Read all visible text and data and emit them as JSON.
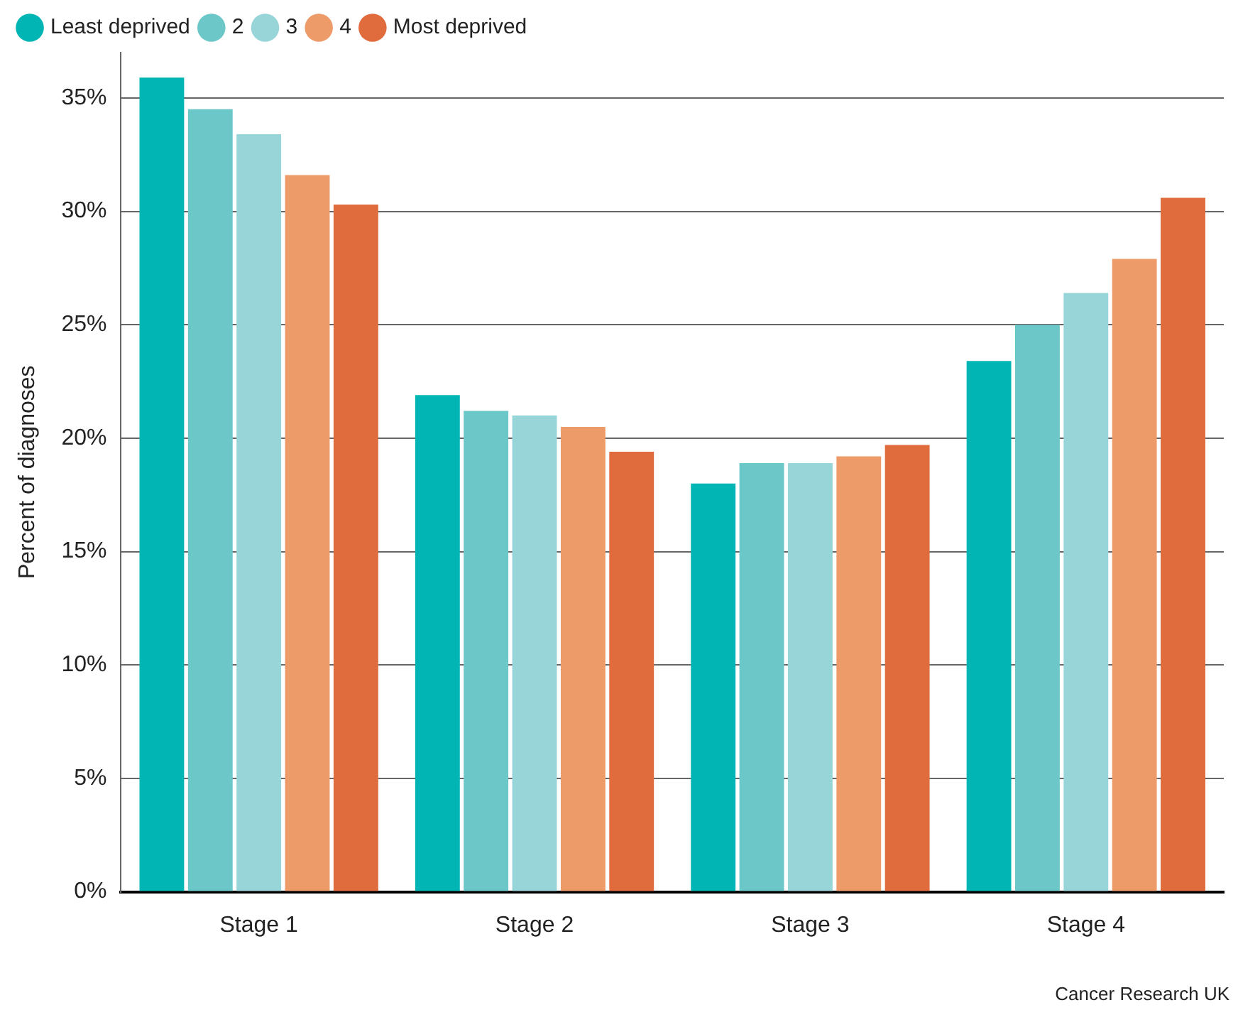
{
  "chart_data": {
    "type": "bar",
    "ylabel": "Percent of diagnoses",
    "categories": [
      "Stage 1",
      "Stage 2",
      "Stage 3",
      "Stage 4"
    ],
    "series": [
      {
        "name": "Least deprived",
        "color": "#00b5b3",
        "values": [
          35.9,
          21.9,
          18.0,
          23.4
        ]
      },
      {
        "name": "2",
        "color": "#6cc7c9",
        "values": [
          34.5,
          21.2,
          18.9,
          25.0
        ]
      },
      {
        "name": "3",
        "color": "#98d5d8",
        "values": [
          33.4,
          21.0,
          18.9,
          26.4
        ]
      },
      {
        "name": "4",
        "color": "#ee9b6a",
        "values": [
          31.6,
          20.5,
          19.2,
          27.9
        ]
      },
      {
        "name": "Most deprived",
        "color": "#e06b3c",
        "values": [
          30.3,
          19.4,
          19.7,
          30.6
        ]
      }
    ],
    "ylim": [
      0,
      37
    ],
    "yticks": [
      {
        "value": 0,
        "label": "0%"
      },
      {
        "value": 5,
        "label": "5%"
      },
      {
        "value": 10,
        "label": "10%"
      },
      {
        "value": 15,
        "label": "15%"
      },
      {
        "value": 20,
        "label": "20%"
      },
      {
        "value": 25,
        "label": "25%"
      },
      {
        "value": 30,
        "label": "30%"
      },
      {
        "value": 35,
        "label": "35%"
      }
    ],
    "grid": "y",
    "legend": "top left",
    "annotations": [
      "Cancer Research UK"
    ]
  }
}
